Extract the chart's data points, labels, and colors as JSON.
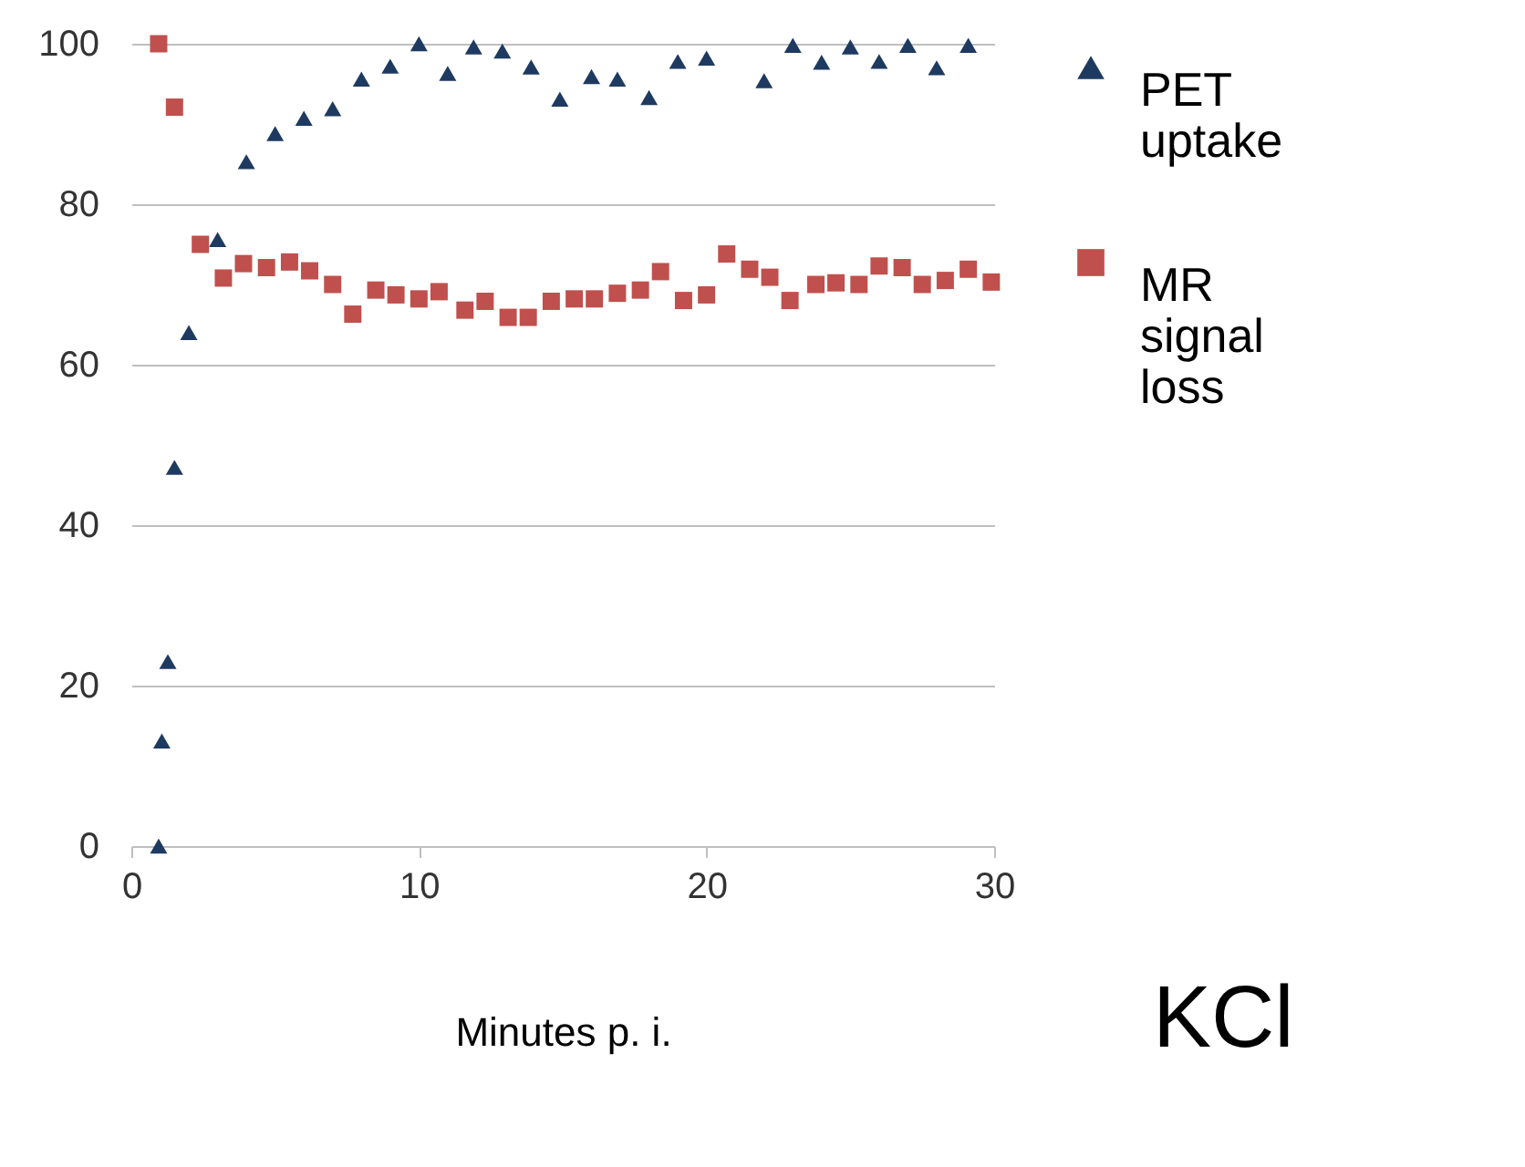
{
  "chart_data": {
    "type": "scatter",
    "xlabel": "Minutes p. i.",
    "xlim": [
      0,
      30
    ],
    "xticks": [
      0,
      10,
      20,
      30
    ],
    "ylim": [
      0,
      100
    ],
    "yticks": [
      0,
      20,
      40,
      60,
      80,
      100
    ],
    "grid": "y",
    "legend": "right",
    "annotations": [
      "KCl"
    ],
    "series": [
      {
        "name": "PET uptake",
        "color": "#1f3a60",
        "marker": "triangle",
        "x": [
          0.95,
          1.06,
          1.27,
          1.5,
          2.0,
          3.0,
          4.0,
          5.0,
          6.0,
          7.0,
          8.0,
          9.0,
          10.0,
          11.0,
          11.9,
          12.9,
          13.9,
          14.9,
          16.0,
          16.9,
          18.0,
          19.0,
          20.0,
          22.0,
          23.0,
          24.0,
          25.0,
          26.0,
          27.0,
          28.0,
          29.1
        ],
        "values": [
          0,
          13.1,
          23,
          47.2,
          64,
          75.6,
          85.3,
          88.8,
          90.7,
          91.9,
          95.6,
          97.2,
          100,
          96.3,
          99.6,
          99.1,
          97.1,
          93.1,
          95.9,
          95.6,
          93.3,
          97.8,
          98.2,
          95.4,
          99.8,
          97.7,
          99.6,
          97.8,
          99.8,
          97.0,
          99.8
        ]
      },
      {
        "name": "MR signal loss",
        "color": "#c0504d",
        "marker": "square",
        "x": [
          0.95,
          1.5,
          2.4,
          3.2,
          3.9,
          4.7,
          5.5,
          6.2,
          7.0,
          7.7,
          8.5,
          9.2,
          10.0,
          10.7,
          11.6,
          12.3,
          13.1,
          13.8,
          14.6,
          15.4,
          16.1,
          16.9,
          17.7,
          18.4,
          19.2,
          20.0,
          20.7,
          21.5,
          22.2,
          22.9,
          23.8,
          24.5,
          25.3,
          26.0,
          26.8,
          27.5,
          28.3,
          29.1,
          29.9
        ],
        "values": [
          100,
          92.1,
          75,
          70.8,
          72.6,
          72.1,
          72.8,
          71.7,
          70,
          66.3,
          69.3,
          68.7,
          68.2,
          69.1,
          66.8,
          67.9,
          65.9,
          65.9,
          67.9,
          68.2,
          68.2,
          68.9,
          69.3,
          71.6,
          68,
          68.7,
          73.8,
          71.9,
          70.9,
          68,
          70,
          70.2,
          70,
          72.3,
          72.1,
          70,
          70.5,
          71.9,
          70.3
        ]
      }
    ]
  }
}
